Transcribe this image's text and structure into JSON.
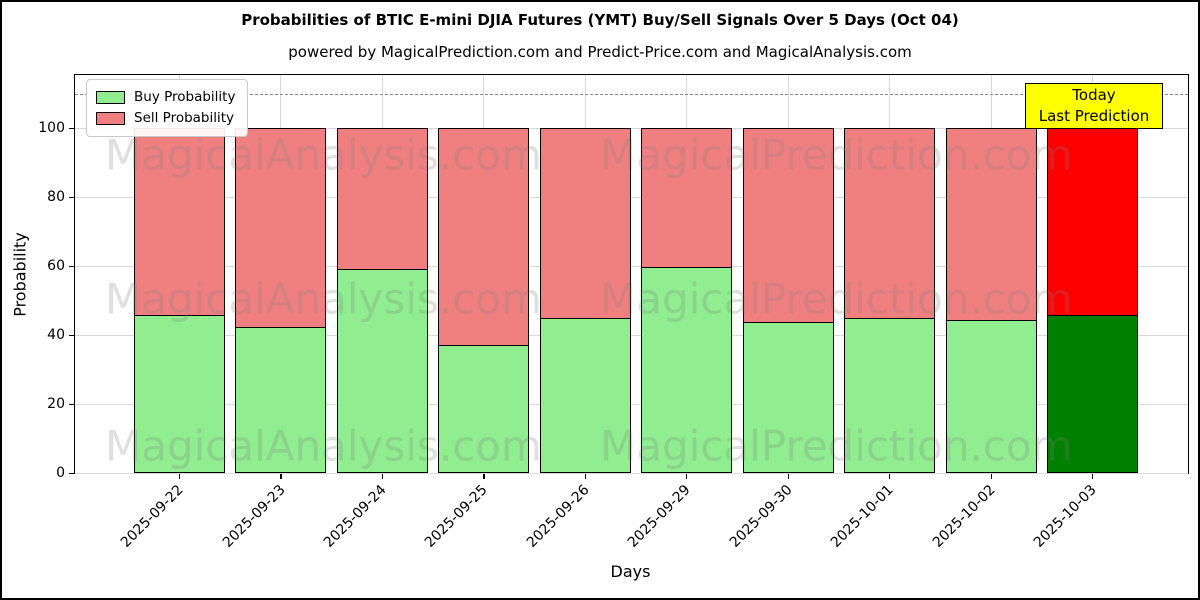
{
  "figure": {
    "title": "Probabilities of BTIC E-mini DJIA Futures (YMT) Buy/Sell Signals Over 5 Days (Oct 04)",
    "subtitle": "powered by MagicalPrediction.com and Predict-Price.com and MagicalAnalysis.com"
  },
  "legend": {
    "buy_label": "Buy Probability",
    "sell_label": "Sell Probability"
  },
  "annotation": {
    "line1": "Today",
    "line2": "Last Prediction"
  },
  "watermarks": {
    "left": "MagicalAnalysis.com",
    "right": "MagicalPrediction.com"
  },
  "axes": {
    "xlabel": "Days",
    "ylabel": "Probability"
  },
  "colors": {
    "buy": "#90ee90",
    "sell": "#f08080",
    "today_buy": "#008000",
    "today_sell": "#ff0000",
    "bar_edge": "#000000",
    "grid": "#d9d9d9",
    "dashed": "#8a8a8a",
    "annotation_bg": "#ffff00",
    "watermark": "rgba(128,128,128,0.25)"
  },
  "chart_data": {
    "type": "bar",
    "stacked": true,
    "title": "Probabilities of BTIC E-mini DJIA Futures (YMT) Buy/Sell Signals Over 5 Days (Oct 04)",
    "xlabel": "Days",
    "ylabel": "Probability",
    "categories": [
      "2025-09-22",
      "2025-09-23",
      "2025-09-24",
      "2025-09-25",
      "2025-09-26",
      "2025-09-29",
      "2025-09-30",
      "2025-10-01",
      "2025-10-02",
      "2025-10-03"
    ],
    "series": [
      {
        "name": "Buy Probability",
        "values": [
          45.7,
          42.3,
          59.1,
          37.2,
          45.0,
          59.7,
          43.9,
          45.0,
          44.4,
          45.8
        ]
      },
      {
        "name": "Sell Probability",
        "values": [
          54.3,
          57.7,
          40.9,
          62.8,
          55.0,
          40.3,
          56.1,
          55.0,
          55.6,
          54.2
        ]
      }
    ],
    "today_index": 9,
    "ylim": [
      0,
      115.4
    ],
    "yticks": [
      0,
      20,
      40,
      60,
      80,
      100
    ],
    "dashed_line_y": 110,
    "grid": true,
    "legend_position": "upper left"
  }
}
